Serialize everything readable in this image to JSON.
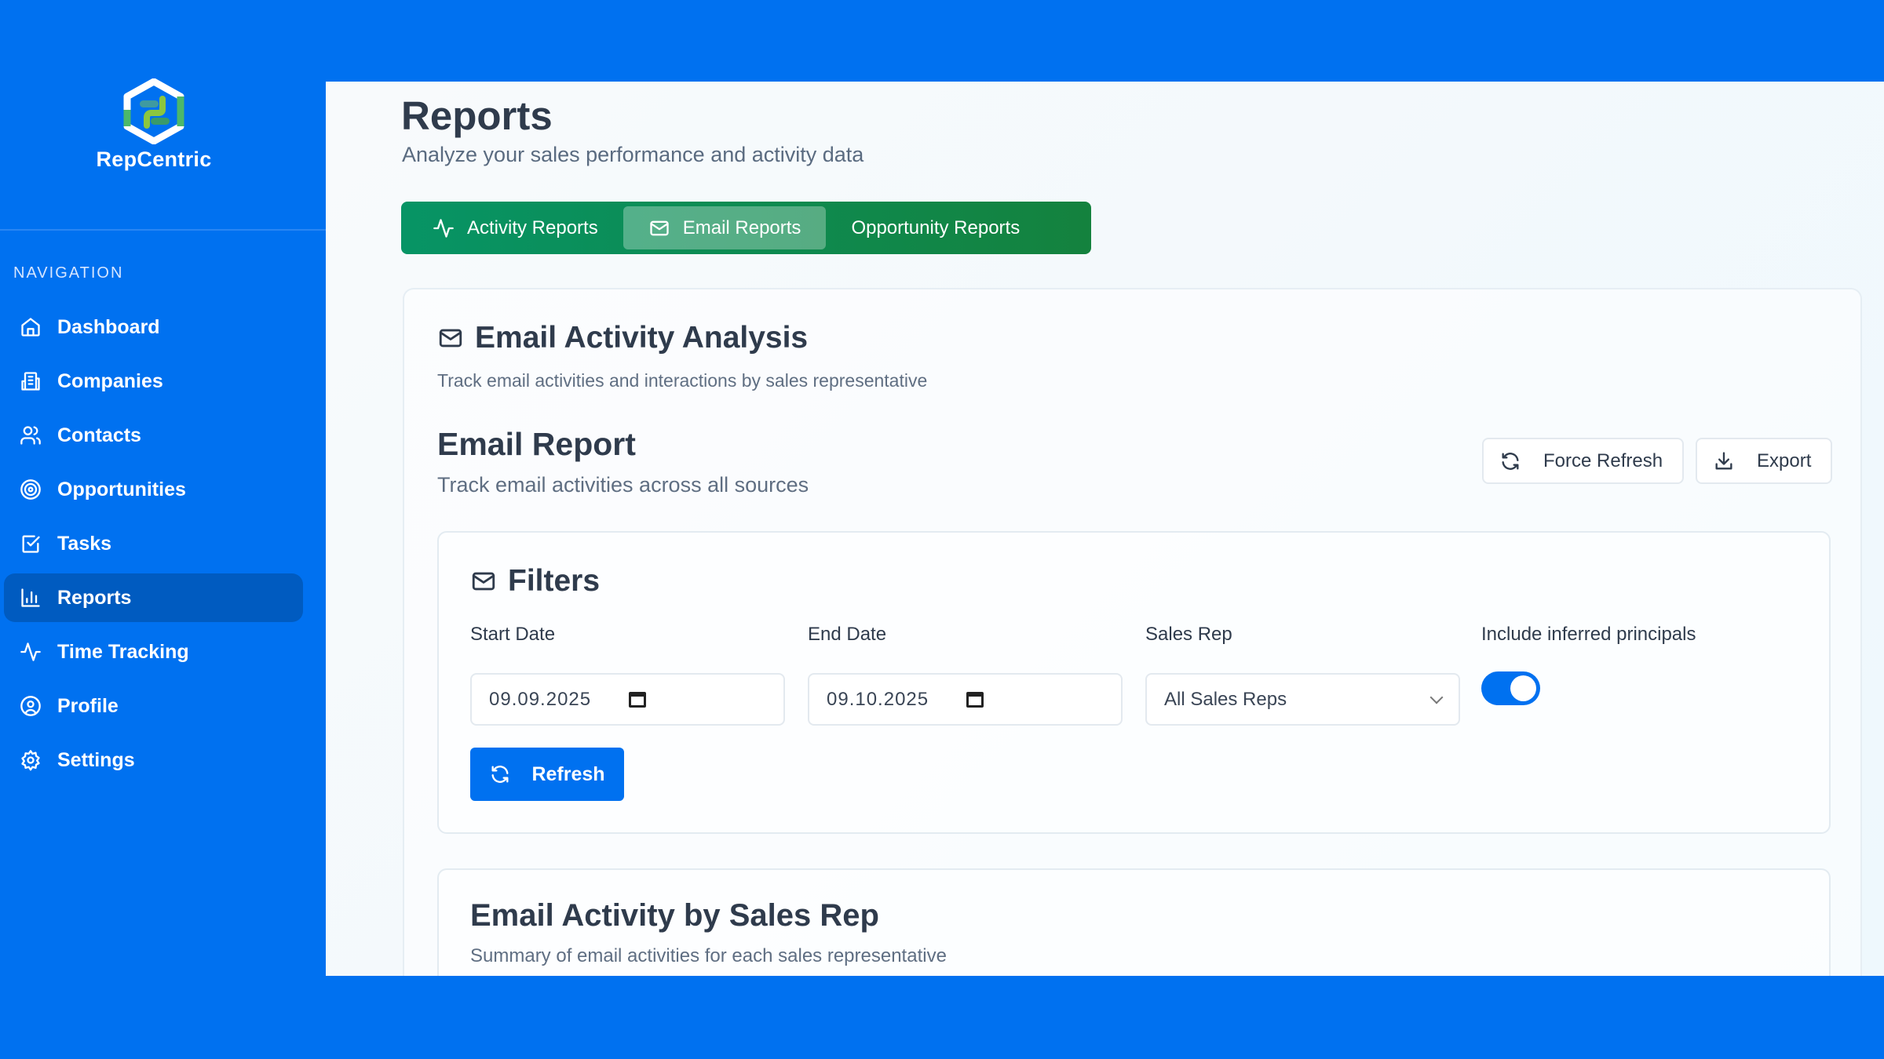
{
  "app": {
    "name": "RepCentric"
  },
  "sidebar": {
    "section_label": "NAVIGATION",
    "items": [
      {
        "label": "Dashboard",
        "icon": "home-icon"
      },
      {
        "label": "Companies",
        "icon": "building-icon"
      },
      {
        "label": "Contacts",
        "icon": "users-icon"
      },
      {
        "label": "Opportunities",
        "icon": "target-icon"
      },
      {
        "label": "Tasks",
        "icon": "checkbox-icon"
      },
      {
        "label": "Reports",
        "icon": "bar-chart-icon",
        "active": true
      },
      {
        "label": "Time Tracking",
        "icon": "activity-icon"
      },
      {
        "label": "Profile",
        "icon": "user-circle-icon"
      },
      {
        "label": "Settings",
        "icon": "gear-icon"
      }
    ]
  },
  "header": {
    "title": "Reports",
    "subtitle": "Analyze your sales performance and activity data"
  },
  "tabs": [
    {
      "label": "Activity Reports",
      "icon": "activity-icon"
    },
    {
      "label": "Email Reports",
      "icon": "mail-icon",
      "active": true
    },
    {
      "label": "Opportunity Reports"
    }
  ],
  "analysis": {
    "title": "Email Activity Analysis",
    "subtitle": "Track email activities and interactions by sales representative",
    "report_title": "Email Report",
    "report_subtitle": "Track email activities across all sources",
    "force_refresh_label": "Force Refresh",
    "export_label": "Export"
  },
  "filters": {
    "title": "Filters",
    "start_date": {
      "label": "Start Date",
      "value": "09.09.2025"
    },
    "end_date": {
      "label": "End Date",
      "value": "09.10.2025"
    },
    "sales_rep": {
      "label": "Sales Rep",
      "value": "All Sales Reps"
    },
    "inferred": {
      "label": "Include inferred principals",
      "on": true
    },
    "refresh_label": "Refresh"
  },
  "by_rep": {
    "title": "Email Activity by Sales Rep",
    "subtitle": "Summary of email activities for each sales representative"
  },
  "colors": {
    "brand_blue": "#0071f0",
    "active_nav": "#005bc0",
    "tab_green": "#079465"
  }
}
